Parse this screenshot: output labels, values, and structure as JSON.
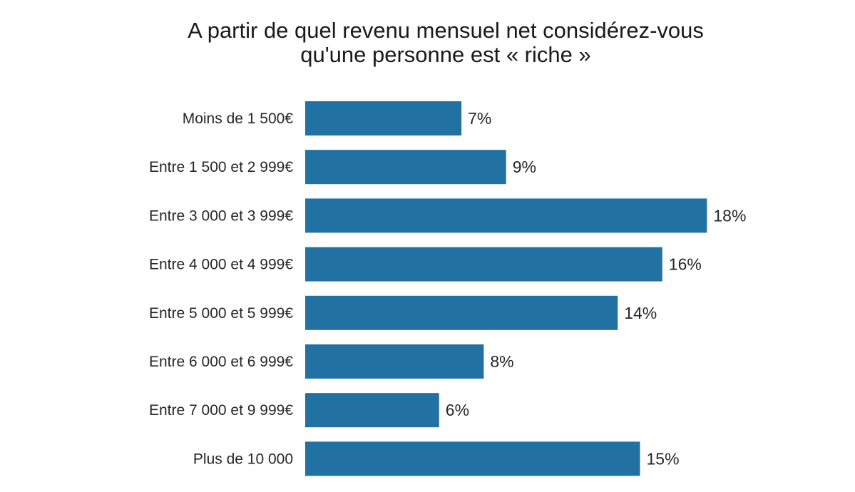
{
  "chart_data": {
    "type": "bar",
    "orientation": "horizontal",
    "title_lines": [
      "A partir de quel revenu mensuel net considérez-vous",
      "qu'une personne est « riche »"
    ],
    "categories": [
      "Moins de 1 500€",
      "Entre 1 500 et 2 999€",
      "Entre 3 000 et 3 999€",
      "Entre 4 000 et 4 999€",
      "Entre 5 000 et 5 999€",
      "Entre 6 000 et 6 999€",
      "Entre 7 000 et 9 999€",
      "Plus de 10 000"
    ],
    "values": [
      7,
      9,
      18,
      16,
      14,
      8,
      6,
      15
    ],
    "value_labels": [
      "7%",
      "9%",
      "18%",
      "16%",
      "14%",
      "8%",
      "6%",
      "15%"
    ],
    "unit": "%",
    "bar_color": "#2271a3",
    "grid": false,
    "axes_visible": false
  }
}
